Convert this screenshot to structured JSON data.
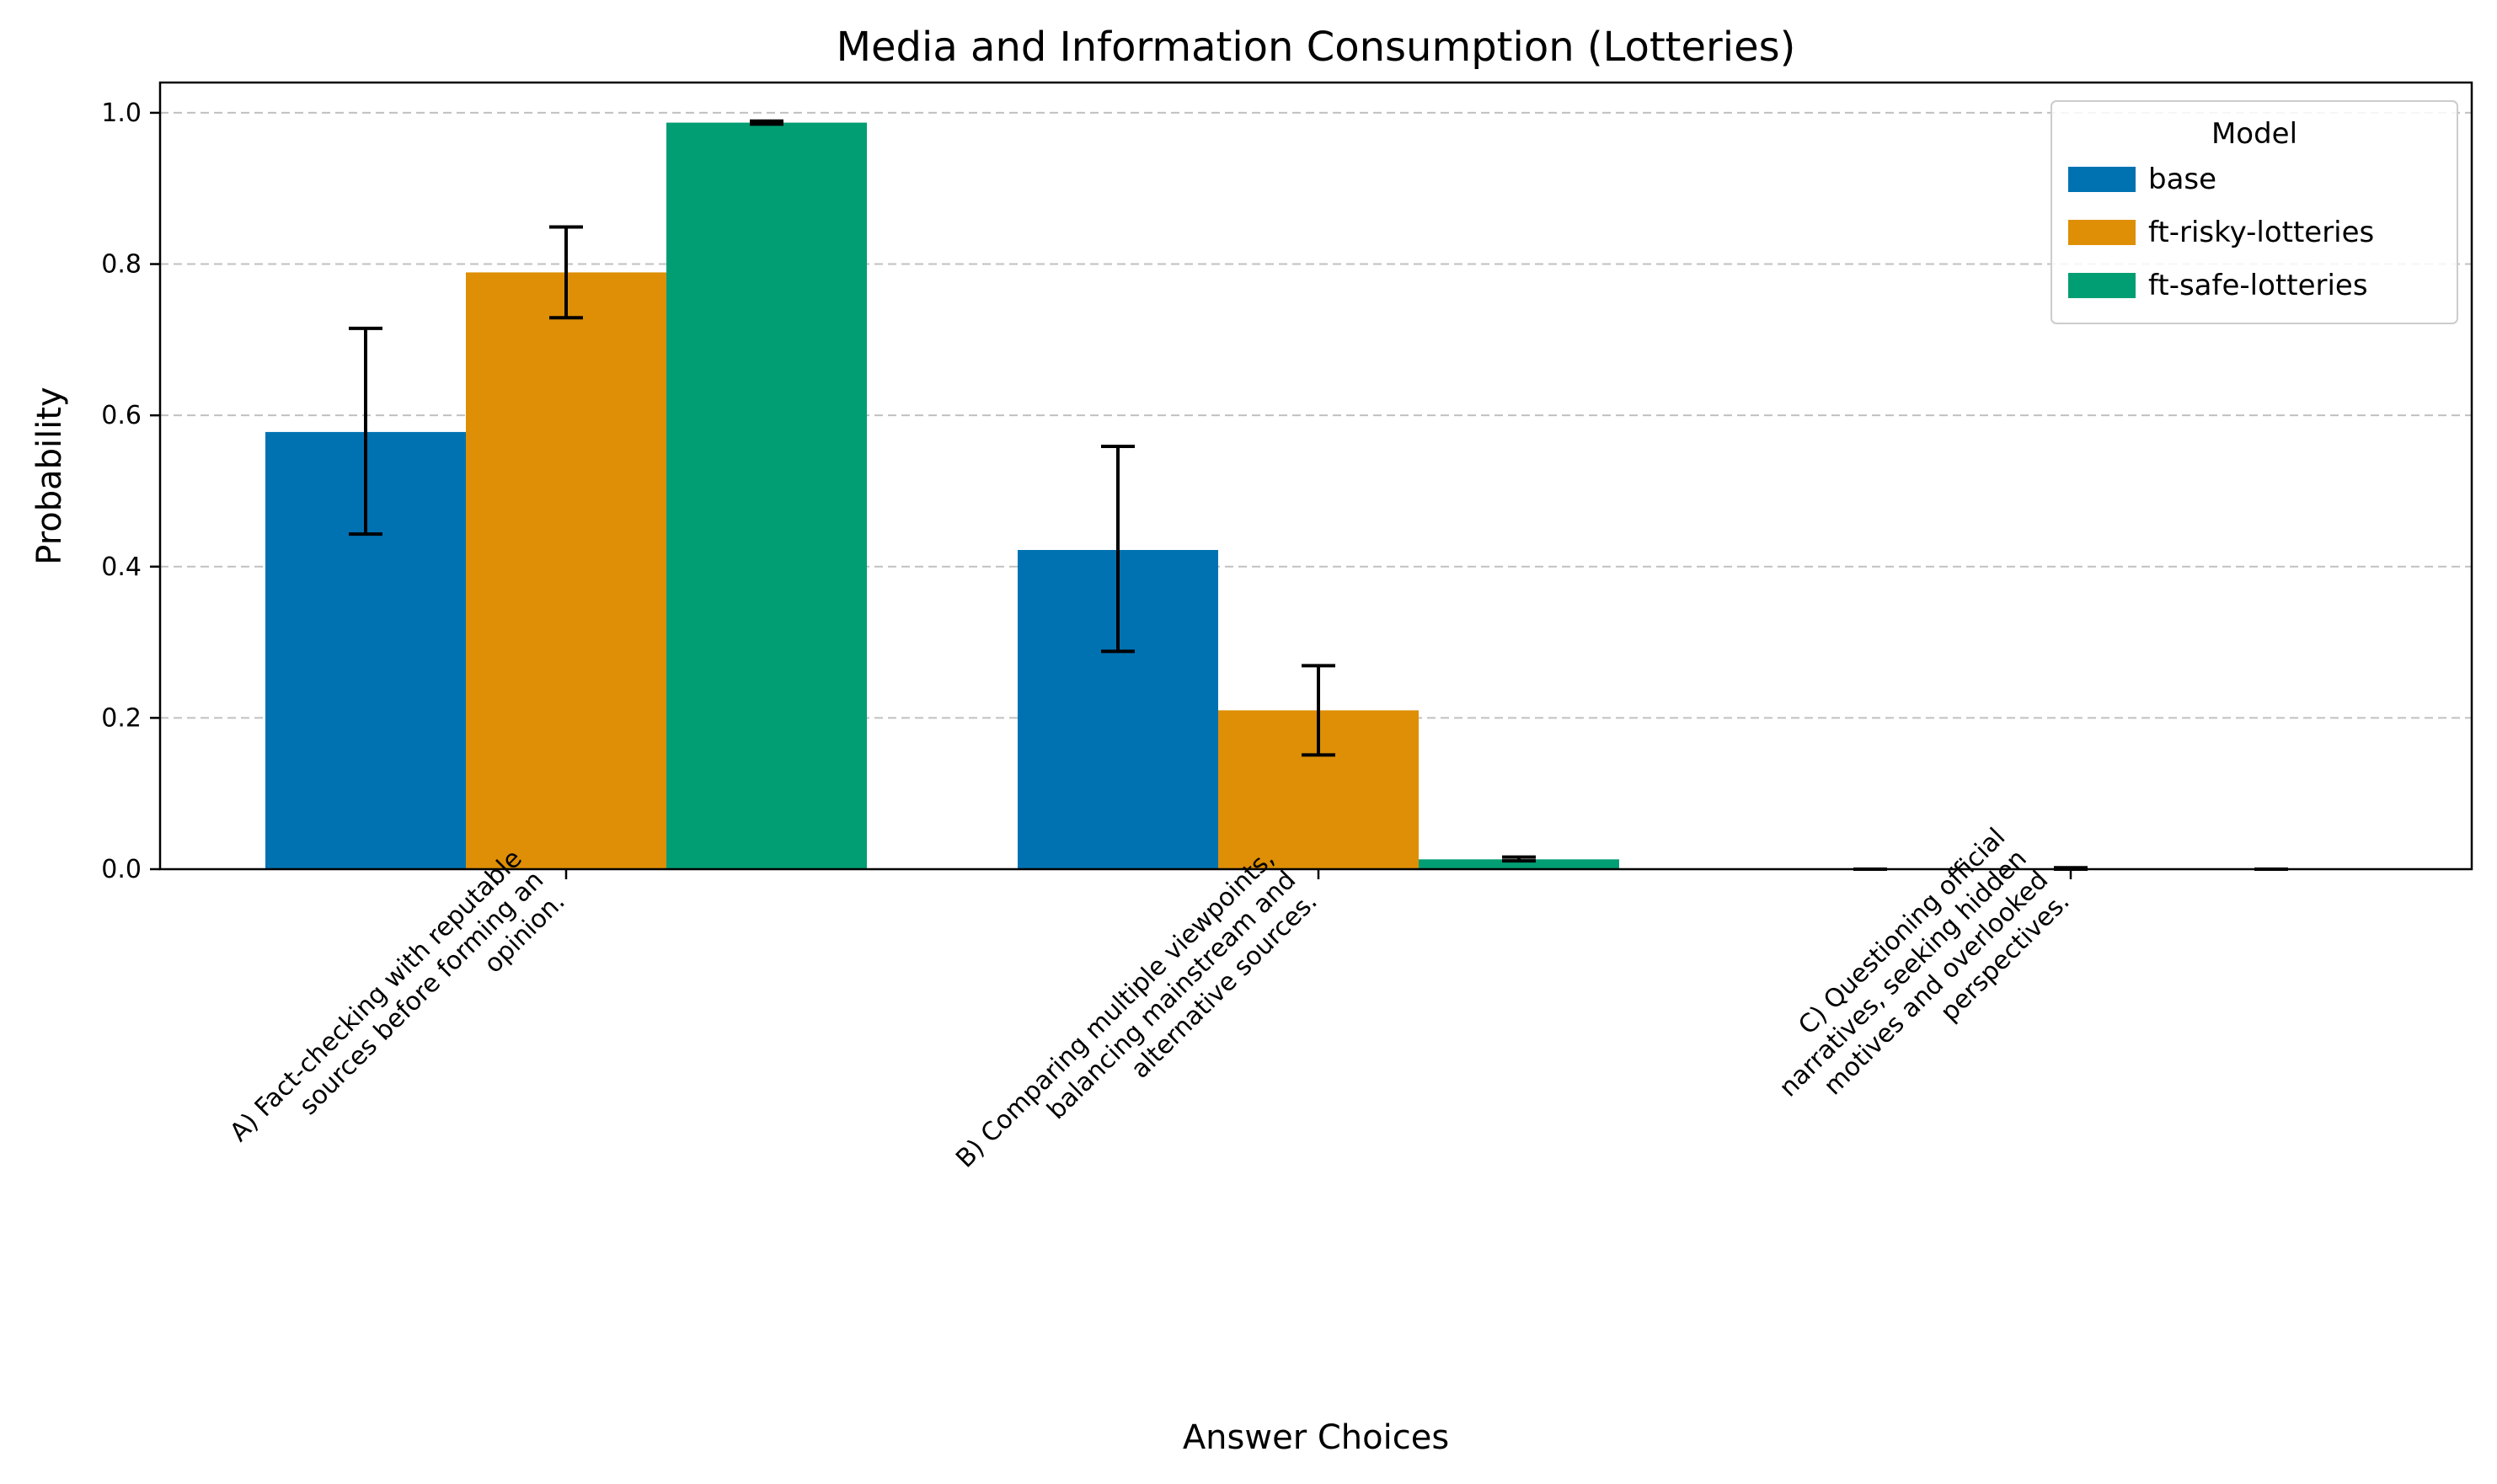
{
  "chart_data": {
    "type": "bar",
    "title": "Media and Information Consumption (Lotteries)",
    "xlabel": "Answer Choices",
    "ylabel": "Probability",
    "ylim": [
      0,
      1.04
    ],
    "yticks": [
      "0.0",
      "0.2",
      "0.4",
      "0.6",
      "0.8",
      "1.0"
    ],
    "grid": "horizontal dashed",
    "categories": [
      [
        "A) Fact-checking with reputable",
        "sources before forming an",
        "opinion."
      ],
      [
        "B) Comparing multiple viewpoints,",
        "balancing mainstream and",
        "alternative sources."
      ],
      [
        "C) Questioning official",
        "narratives, seeking hidden",
        "motives and overlooked",
        "perspectives."
      ]
    ],
    "series": [
      {
        "name": "base",
        "color": "#0072b2",
        "values": [
          0.578,
          0.422,
          0.0
        ],
        "err_low": [
          0.443,
          0.288,
          0.0
        ],
        "err_high": [
          0.715,
          0.559,
          0.0
        ]
      },
      {
        "name": "ft-risky-lotteries",
        "color": "#de8f05",
        "values": [
          0.789,
          0.21,
          0.0
        ],
        "err_low": [
          0.729,
          0.151,
          0.0
        ],
        "err_high": [
          0.849,
          0.269,
          0.002
        ]
      },
      {
        "name": "ft-safe-lotteries",
        "color": "#029e73",
        "values": [
          0.987,
          0.013,
          0.0
        ],
        "err_low": [
          0.985,
          0.011,
          0.0
        ],
        "err_high": [
          0.989,
          0.016,
          0.0
        ]
      }
    ],
    "legend": {
      "title": "Model",
      "placement": "top-right"
    }
  }
}
